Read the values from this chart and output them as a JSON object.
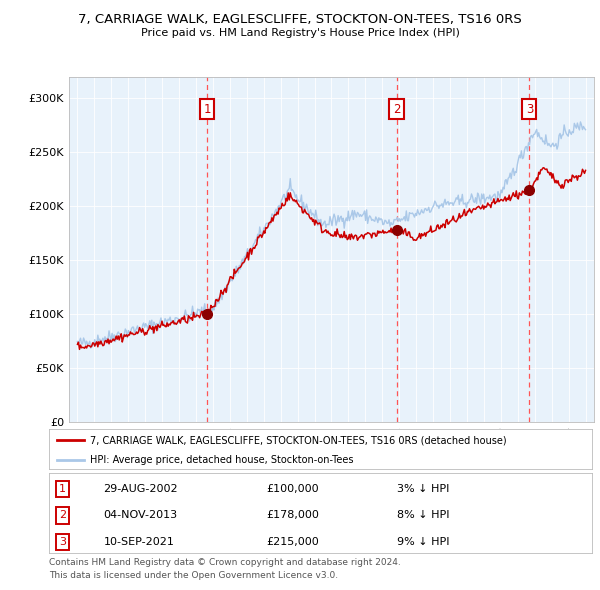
{
  "title": "7, CARRIAGE WALK, EAGLESCLIFFE, STOCKTON-ON-TEES, TS16 0RS",
  "subtitle": "Price paid vs. HM Land Registry's House Price Index (HPI)",
  "legend_line1": "7, CARRIAGE WALK, EAGLESCLIFFE, STOCKTON-ON-TEES, TS16 0RS (detached house)",
  "legend_line2": "HPI: Average price, detached house, Stockton-on-Tees",
  "footer1": "Contains HM Land Registry data © Crown copyright and database right 2024.",
  "footer2": "This data is licensed under the Open Government Licence v3.0.",
  "transactions": [
    {
      "num": 1,
      "date": "29-AUG-2002",
      "price": 100000,
      "hpi_diff": "3%",
      "direction": "↓",
      "x_year": 2002.66
    },
    {
      "num": 2,
      "date": "04-NOV-2013",
      "price": 178000,
      "hpi_diff": "8%",
      "direction": "↓",
      "x_year": 2013.84
    },
    {
      "num": 3,
      "date": "10-SEP-2021",
      "price": 215000,
      "hpi_diff": "9%",
      "direction": "↓",
      "x_year": 2021.69
    }
  ],
  "hpi_color": "#aac8e8",
  "price_color": "#cc0000",
  "dot_color": "#8b0000",
  "dashed_color": "#ff5555",
  "plot_bg": "#e8f2fb",
  "ylim": [
    0,
    320000
  ],
  "xlim_start": 1994.5,
  "xlim_end": 2025.5,
  "yticks": [
    0,
    50000,
    100000,
    150000,
    200000,
    250000,
    300000
  ],
  "ytick_labels": [
    "£0",
    "£50K",
    "£100K",
    "£150K",
    "£200K",
    "£250K",
    "£300K"
  ],
  "xticks": [
    1995,
    1996,
    1997,
    1998,
    1999,
    2000,
    2001,
    2002,
    2003,
    2004,
    2005,
    2006,
    2007,
    2008,
    2009,
    2010,
    2011,
    2012,
    2013,
    2014,
    2015,
    2016,
    2017,
    2018,
    2019,
    2020,
    2021,
    2022,
    2023,
    2024,
    2025
  ]
}
